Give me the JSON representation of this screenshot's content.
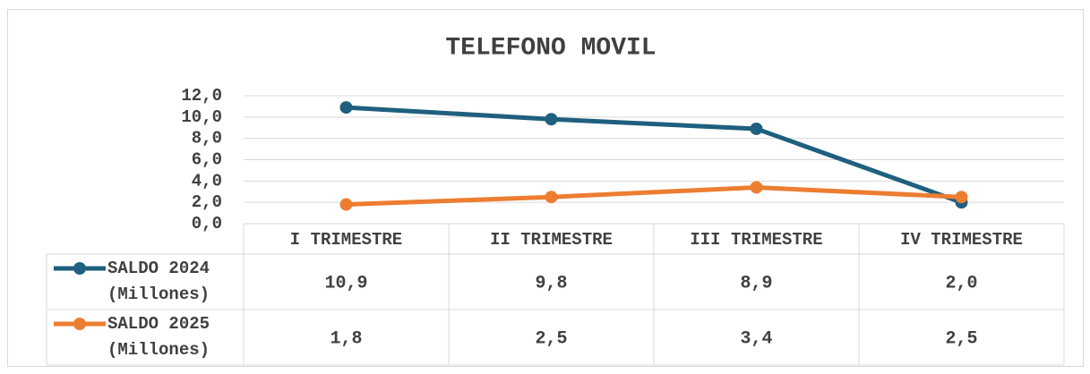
{
  "chart_data": {
    "type": "line",
    "title": "TELEFONO MOVIL",
    "categories": [
      "I TRIMESTRE",
      "II TRIMESTRE",
      "III TRIMESTRE",
      "IV TRIMESTRE"
    ],
    "series": [
      {
        "name": "SALDO 2024 (Millones)",
        "color": "#1f5f7f",
        "values": [
          10.9,
          9.8,
          8.9,
          2.0
        ],
        "value_labels": [
          "10,9",
          "9,8",
          "8,9",
          "2,0"
        ]
      },
      {
        "name": "SALDO 2025 (Millones)",
        "color": "#ed7d31",
        "values": [
          1.8,
          2.5,
          3.4,
          2.5
        ],
        "value_labels": [
          "1,8",
          "2,5",
          "3,4",
          "2,5"
        ]
      }
    ],
    "ylim": [
      0,
      12
    ],
    "yticks": [
      {
        "value": 0,
        "label": "0,0"
      },
      {
        "value": 2,
        "label": "2,0"
      },
      {
        "value": 4,
        "label": "4,0"
      },
      {
        "value": 6,
        "label": "6,0"
      },
      {
        "value": 8,
        "label": "8,0"
      },
      {
        "value": 10,
        "label": "10,0"
      },
      {
        "value": 12,
        "label": "12,0"
      }
    ],
    "grid": true
  }
}
